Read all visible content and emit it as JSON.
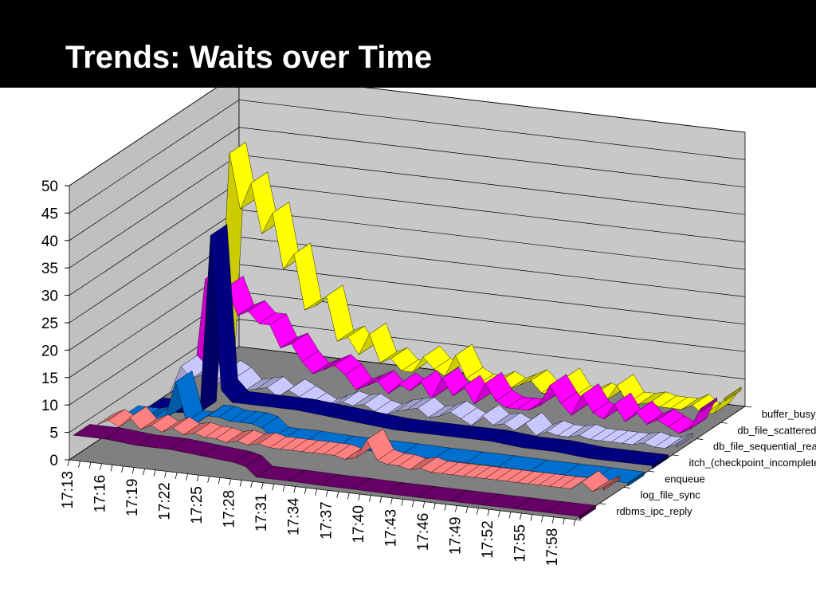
{
  "slide": {
    "title": "Trends: Waits over Time"
  },
  "chart_data": {
    "type": "line",
    "subtype": "3d-ribbon",
    "title": "",
    "xlabel": "",
    "ylabel": "",
    "ylim": [
      0,
      50
    ],
    "yticks": [
      "0",
      "5",
      "10",
      "15",
      "20",
      "25",
      "30",
      "35",
      "40",
      "45",
      "50"
    ],
    "xticks": [
      "17:13",
      "17:16",
      "17:19",
      "17:22",
      "17:25",
      "17:28",
      "17:31",
      "17:34",
      "17:37",
      "17:40",
      "17:43",
      "17:46",
      "17:49",
      "17:52",
      "17:55",
      "17:58"
    ],
    "x_start_minute": 0,
    "x_end_minute": 47,
    "grid": true,
    "legend": "series labels along depth axis, right side",
    "series": [
      {
        "name": "rdbms_ipc_reply",
        "color": "#660066",
        "points": [
          [
            0,
            4
          ],
          [
            3,
            4
          ],
          [
            6,
            3.5
          ],
          [
            9,
            3.5
          ],
          [
            12,
            3
          ],
          [
            15,
            2.5
          ],
          [
            16,
            2
          ],
          [
            17,
            0.3
          ],
          [
            20,
            0.3
          ],
          [
            23,
            0.2
          ],
          [
            26,
            0.2
          ],
          [
            29,
            0.1
          ],
          [
            32,
            0.1
          ],
          [
            35,
            0.1
          ],
          [
            38,
            0.1
          ],
          [
            41,
            0.1
          ],
          [
            44,
            0.1
          ],
          [
            47,
            0.1
          ]
        ]
      },
      {
        "name": "log_file_sync",
        "color": "#ff8080",
        "points": [
          [
            0,
            3
          ],
          [
            1,
            4
          ],
          [
            2,
            3
          ],
          [
            3,
            5
          ],
          [
            4,
            3
          ],
          [
            5,
            4
          ],
          [
            6,
            3
          ],
          [
            7,
            4
          ],
          [
            8,
            3
          ],
          [
            9,
            3.5
          ],
          [
            10,
            3
          ],
          [
            11,
            3
          ],
          [
            12,
            2.5
          ],
          [
            13,
            3
          ],
          [
            14,
            2.5
          ],
          [
            15,
            3
          ],
          [
            16,
            2.5
          ],
          [
            17,
            2.5
          ],
          [
            18,
            2.5
          ],
          [
            19,
            2.5
          ],
          [
            20,
            2.5
          ],
          [
            21,
            2.5
          ],
          [
            22,
            2.5
          ],
          [
            23,
            2
          ],
          [
            24,
            2.5
          ],
          [
            25,
            6
          ],
          [
            26,
            2.5
          ],
          [
            27,
            2
          ],
          [
            28,
            2
          ],
          [
            29,
            1.5
          ],
          [
            30,
            2
          ],
          [
            31,
            1.5
          ],
          [
            32,
            1.5
          ],
          [
            33,
            1.5
          ],
          [
            34,
            1.5
          ],
          [
            35,
            1.5
          ],
          [
            36,
            1.5
          ],
          [
            37,
            1.5
          ],
          [
            38,
            1.5
          ],
          [
            39,
            1.5
          ],
          [
            40,
            1.5
          ],
          [
            41,
            1.5
          ],
          [
            42,
            1.5
          ],
          [
            43,
            1.5
          ],
          [
            44,
            1.5
          ],
          [
            45,
            3
          ],
          [
            46,
            1.5
          ],
          [
            47,
            2.5
          ]
        ]
      },
      {
        "name": "enqueue",
        "color": "#0070d0",
        "points": [
          [
            0,
            1.5
          ],
          [
            1,
            1.5
          ],
          [
            2,
            1.5
          ],
          [
            3,
            2
          ],
          [
            4,
            2
          ],
          [
            5,
            9
          ],
          [
            6,
            2
          ],
          [
            7,
            2
          ],
          [
            8,
            3.5
          ],
          [
            9,
            3.5
          ],
          [
            10,
            3
          ],
          [
            11,
            3
          ],
          [
            12,
            3
          ],
          [
            13,
            2.5
          ],
          [
            14,
            0.8
          ],
          [
            15,
            0.8
          ],
          [
            17,
            0.8
          ],
          [
            20,
            0.6
          ],
          [
            23,
            0.6
          ],
          [
            26,
            0.6
          ],
          [
            29,
            0.5
          ],
          [
            32,
            0.5
          ],
          [
            35,
            0.5
          ],
          [
            38,
            0.4
          ],
          [
            41,
            0.4
          ],
          [
            44,
            0.4
          ],
          [
            47,
            0.3
          ]
        ]
      },
      {
        "name": "itch_(checkpoint_incomplete)_",
        "color": "#000080",
        "points": [
          [
            0,
            0
          ],
          [
            3,
            0
          ],
          [
            5,
            0.5
          ],
          [
            6,
            33
          ],
          [
            7,
            5
          ],
          [
            8,
            3
          ],
          [
            11,
            3
          ],
          [
            14,
            3
          ],
          [
            17,
            2.5
          ],
          [
            20,
            2
          ],
          [
            23,
            1.5
          ],
          [
            26,
            1.5
          ],
          [
            29,
            1.5
          ],
          [
            32,
            1.5
          ],
          [
            35,
            1
          ],
          [
            38,
            1
          ],
          [
            41,
            0.5
          ],
          [
            44,
            0.5
          ],
          [
            47,
            0.5
          ]
        ]
      },
      {
        "name": "db_file_sequential_read",
        "color": "#c8c8ff",
        "points": [
          [
            0,
            0
          ],
          [
            1,
            5
          ],
          [
            2,
            3
          ],
          [
            3,
            4
          ],
          [
            4,
            2
          ],
          [
            5,
            5
          ],
          [
            6,
            4
          ],
          [
            7,
            2
          ],
          [
            8,
            2.5
          ],
          [
            9,
            3
          ],
          [
            10,
            1.5
          ],
          [
            11,
            3
          ],
          [
            12,
            2
          ],
          [
            13,
            1
          ],
          [
            14,
            0
          ],
          [
            15,
            1
          ],
          [
            16,
            2
          ],
          [
            17,
            1.5
          ],
          [
            18,
            2
          ],
          [
            19,
            1
          ],
          [
            20,
            0.5
          ],
          [
            21,
            1.5
          ],
          [
            22,
            2
          ],
          [
            23,
            2.5
          ],
          [
            24,
            1
          ],
          [
            25,
            1.5
          ],
          [
            26,
            2.5
          ],
          [
            27,
            1.5
          ],
          [
            28,
            0.5
          ],
          [
            29,
            2.5
          ],
          [
            30,
            1
          ],
          [
            31,
            1.5
          ],
          [
            32,
            0.5
          ],
          [
            33,
            2
          ],
          [
            34,
            0
          ],
          [
            35,
            1
          ],
          [
            36,
            0.5
          ],
          [
            37,
            0.5
          ],
          [
            38,
            1
          ],
          [
            39,
            0.5
          ],
          [
            40,
            0.5
          ],
          [
            41,
            0.5
          ],
          [
            42,
            0.5
          ],
          [
            43,
            0.5
          ],
          [
            44,
            1
          ],
          [
            45,
            0.5
          ],
          [
            46,
            0.5
          ],
          [
            47,
            1.5
          ]
        ]
      },
      {
        "name": "db_file_scattered_read_",
        "color": "#ff00ff",
        "points": [
          [
            0,
            0
          ],
          [
            1,
            18
          ],
          [
            2,
            13
          ],
          [
            3,
            17
          ],
          [
            4,
            12
          ],
          [
            5,
            13
          ],
          [
            6,
            11
          ],
          [
            7,
            11
          ],
          [
            8,
            7
          ],
          [
            9,
            8
          ],
          [
            10,
            5
          ],
          [
            11,
            3
          ],
          [
            12,
            4
          ],
          [
            13,
            5
          ],
          [
            14,
            3.5
          ],
          [
            15,
            1
          ],
          [
            16,
            2
          ],
          [
            17,
            3
          ],
          [
            18,
            1
          ],
          [
            19,
            3
          ],
          [
            20,
            2
          ],
          [
            21,
            4
          ],
          [
            22,
            1
          ],
          [
            23,
            5
          ],
          [
            24,
            2
          ],
          [
            25,
            4
          ],
          [
            26,
            1
          ],
          [
            27,
            5
          ],
          [
            28,
            2
          ],
          [
            29,
            1
          ],
          [
            30,
            1
          ],
          [
            31,
            1
          ],
          [
            32,
            2
          ],
          [
            33,
            6
          ],
          [
            34,
            3
          ],
          [
            35,
            1
          ],
          [
            36,
            5
          ],
          [
            37,
            2
          ],
          [
            38,
            1
          ],
          [
            39,
            4
          ],
          [
            40,
            1
          ],
          [
            41,
            3
          ],
          [
            42,
            1
          ],
          [
            43,
            2
          ],
          [
            44,
            1
          ],
          [
            45,
            0
          ],
          [
            46,
            1
          ],
          [
            47,
            5
          ]
        ]
      },
      {
        "name": "buffer_busy_waits",
        "color": "#ffff00",
        "points": [
          [
            0,
            0
          ],
          [
            1,
            38
          ],
          [
            2,
            28
          ],
          [
            3,
            33
          ],
          [
            4,
            24
          ],
          [
            5,
            28
          ],
          [
            6,
            18
          ],
          [
            7,
            21
          ],
          [
            8,
            11
          ],
          [
            9,
            12
          ],
          [
            10,
            14
          ],
          [
            11,
            6
          ],
          [
            12,
            7
          ],
          [
            13,
            4
          ],
          [
            14,
            8
          ],
          [
            15,
            3
          ],
          [
            16,
            4
          ],
          [
            17,
            2
          ],
          [
            18,
            2
          ],
          [
            19,
            5
          ],
          [
            20,
            3
          ],
          [
            21,
            2
          ],
          [
            22,
            6
          ],
          [
            23,
            2
          ],
          [
            24,
            1
          ],
          [
            25,
            1
          ],
          [
            26,
            2
          ],
          [
            27,
            1
          ],
          [
            28,
            2
          ],
          [
            29,
            3
          ],
          [
            30,
            1
          ],
          [
            31,
            1
          ],
          [
            32,
            4
          ],
          [
            33,
            1
          ],
          [
            34,
            1
          ],
          [
            35,
            2
          ],
          [
            36,
            1
          ],
          [
            37,
            4
          ],
          [
            38,
            1
          ],
          [
            39,
            1
          ],
          [
            40,
            1.5
          ],
          [
            41,
            1
          ],
          [
            42,
            1
          ],
          [
            43,
            1
          ],
          [
            44,
            2
          ],
          [
            45,
            0.5
          ],
          [
            46,
            1
          ],
          [
            47,
            4
          ]
        ]
      }
    ]
  }
}
